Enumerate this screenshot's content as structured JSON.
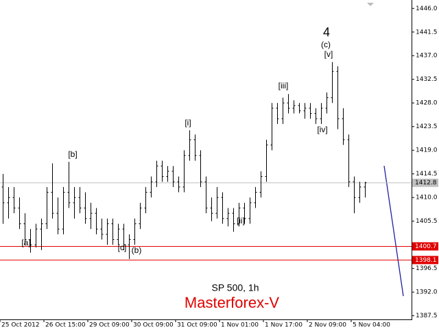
{
  "chart_data": {
    "type": "ohlc",
    "title": "SP 500, 1h",
    "subtitle": "Masterforex-V",
    "color": "#000000",
    "open": [
      1412,
      1409,
      1410,
      1408,
      1405,
      1402,
      1401,
      1404,
      1405,
      1411,
      1407,
      1404,
      1411,
      1409,
      1410,
      1408,
      1406,
      1407,
      1404,
      1403,
      1405,
      1402,
      1404,
      1401,
      1402,
      1405,
      1408,
      1411,
      1413,
      1416,
      1414,
      1415,
      1413,
      1412,
      1418,
      1421,
      1418,
      1413,
      1408,
      1407,
      1410,
      1406,
      1407,
      1405,
      1408,
      1406,
      1409,
      1411,
      1414,
      1420,
      1427,
      1425,
      1428,
      1427,
      1427.5,
      1426.5,
      1427,
      1426,
      1425,
      1427,
      1429,
      1434,
      1425,
      1421,
      1413,
      1410,
      1412
    ],
    "high": [
      1414.5,
      1412,
      1412,
      1410,
      1407,
      1404,
      1405,
      1406,
      1412,
      1416.5,
      1410,
      1412,
      1416.8,
      1412,
      1412,
      1411,
      1409,
      1408,
      1406,
      1406,
      1406,
      1405,
      1405,
      1403,
      1406,
      1409,
      1412,
      1414,
      1417,
      1417,
      1416,
      1416,
      1414,
      1419,
      1422.8,
      1422,
      1419,
      1414,
      1410,
      1412,
      1411,
      1408,
      1408,
      1409,
      1409,
      1410,
      1412,
      1415,
      1421,
      1428,
      1428,
      1429,
      1429.7,
      1428.5,
      1428,
      1428,
      1428,
      1427,
      1428,
      1430,
      1435.8,
      1435,
      1427,
      1422,
      1414,
      1413,
      1413
    ],
    "low": [
      1405,
      1406,
      1407,
      1404,
      1401,
      1399.5,
      1400.5,
      1400,
      1404,
      1406,
      1403,
      1403,
      1408,
      1406,
      1407,
      1405,
      1404,
      1403,
      1402,
      1401,
      1401,
      1401,
      1400,
      1398.3,
      1401,
      1404,
      1407,
      1410,
      1412,
      1413,
      1413,
      1412,
      1411,
      1411,
      1417,
      1417,
      1412,
      1407,
      1405.5,
      1406,
      1405,
      1404.5,
      1403.5,
      1404.5,
      1405,
      1405,
      1408,
      1410,
      1413,
      1419,
      1424,
      1424,
      1426,
      1426,
      1426,
      1425,
      1425,
      1424,
      1424,
      1426,
      1428,
      1423,
      1420,
      1412,
      1407,
      1409,
      1410
    ],
    "close": [
      1409,
      1410,
      1408,
      1405,
      1402,
      1401,
      1404,
      1405,
      1411,
      1407,
      1404,
      1411,
      1409,
      1410,
      1408,
      1406,
      1407,
      1404,
      1403,
      1405,
      1402,
      1404,
      1401,
      1402,
      1405,
      1408,
      1411,
      1413,
      1416,
      1414,
      1415,
      1413,
      1412,
      1418,
      1421,
      1418,
      1413,
      1408,
      1407,
      1410,
      1406,
      1407,
      1405,
      1408,
      1406,
      1409,
      1411,
      1414,
      1420,
      1427,
      1425,
      1428,
      1427,
      1427.5,
      1426.5,
      1427,
      1426,
      1425,
      1427,
      1429,
      1434,
      1425,
      1421,
      1413,
      1410,
      1412,
      1412.8
    ],
    "xlim": [
      0,
      75
    ],
    "xticks": [
      {
        "value": 0,
        "label": "25 Oct 2012"
      },
      {
        "value": 8,
        "label": "26 Oct 15:00"
      },
      {
        "value": 16,
        "label": "29 Oct 09:00"
      },
      {
        "value": 24,
        "label": "30 Oct 09:00"
      },
      {
        "value": 32,
        "label": "31 Oct 09:00"
      },
      {
        "value": 40,
        "label": "1 Nov 01:00"
      },
      {
        "value": 48,
        "label": "1 Nov 17:00"
      },
      {
        "value": 56,
        "label": "2 Nov 09:00"
      },
      {
        "value": 64,
        "label": "5 Nov 04:00"
      }
    ],
    "ylim": [
      1386.8,
      1447.6
    ],
    "yticks": [
      {
        "value": 1446,
        "label": "1446.0"
      },
      {
        "value": 1441.5,
        "label": "1441.5"
      },
      {
        "value": 1437,
        "label": "1437.0"
      },
      {
        "value": 1432.5,
        "label": "1432.5"
      },
      {
        "value": 1428,
        "label": "1428.0"
      },
      {
        "value": 1423.5,
        "label": "1423.5"
      },
      {
        "value": 1419,
        "label": "1419.0"
      },
      {
        "value": 1414.5,
        "label": "1414.5"
      },
      {
        "value": 1410,
        "label": "1410.0"
      },
      {
        "value": 1405.5,
        "label": "1405.5"
      },
      {
        "value": 1396.5,
        "label": "1396.5"
      },
      {
        "value": 1392,
        "label": "1392.0"
      },
      {
        "value": 1387.5,
        "label": "1387.5"
      }
    ],
    "hlines": [
      {
        "value": 1412.8,
        "color": "#c0c0c0"
      },
      {
        "value": 1400.7,
        "color": "#e00000"
      },
      {
        "value": 1398.1,
        "color": "#e00000"
      }
    ],
    "annotations": [
      "4",
      "(c)",
      "[v]",
      "[iii]",
      "[iv]",
      "[i]",
      "[ii]",
      "[b]",
      "[a]",
      "[c]",
      "(b)"
    ]
  }
}
